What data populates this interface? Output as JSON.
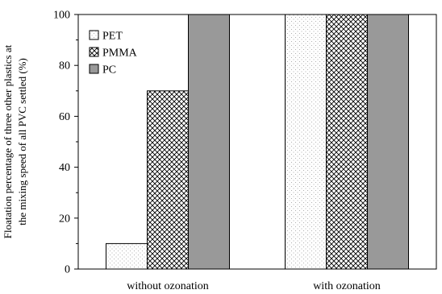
{
  "chart_data": {
    "type": "bar",
    "title": "",
    "xlabel": "",
    "ylabel_lines": [
      "Floatation percentage of three other plastics at",
      "the mixing speed of all PVC settled (%)"
    ],
    "categories": [
      "without ozonation",
      "with ozonation"
    ],
    "series": [
      {
        "name": "PET",
        "values": [
          10,
          100
        ],
        "pattern": "dots",
        "fill": "#ffffff"
      },
      {
        "name": "PMMA",
        "values": [
          70,
          100
        ],
        "pattern": "crosshatch",
        "fill": "#ffffff"
      },
      {
        "name": "PC",
        "values": [
          100,
          100
        ],
        "pattern": "solid",
        "fill": "#999999"
      }
    ],
    "ylim": [
      0,
      100
    ],
    "yticks": [
      "0",
      "20",
      "40",
      "60",
      "80",
      "100"
    ],
    "grid": false,
    "legend_placement": "top-left"
  }
}
